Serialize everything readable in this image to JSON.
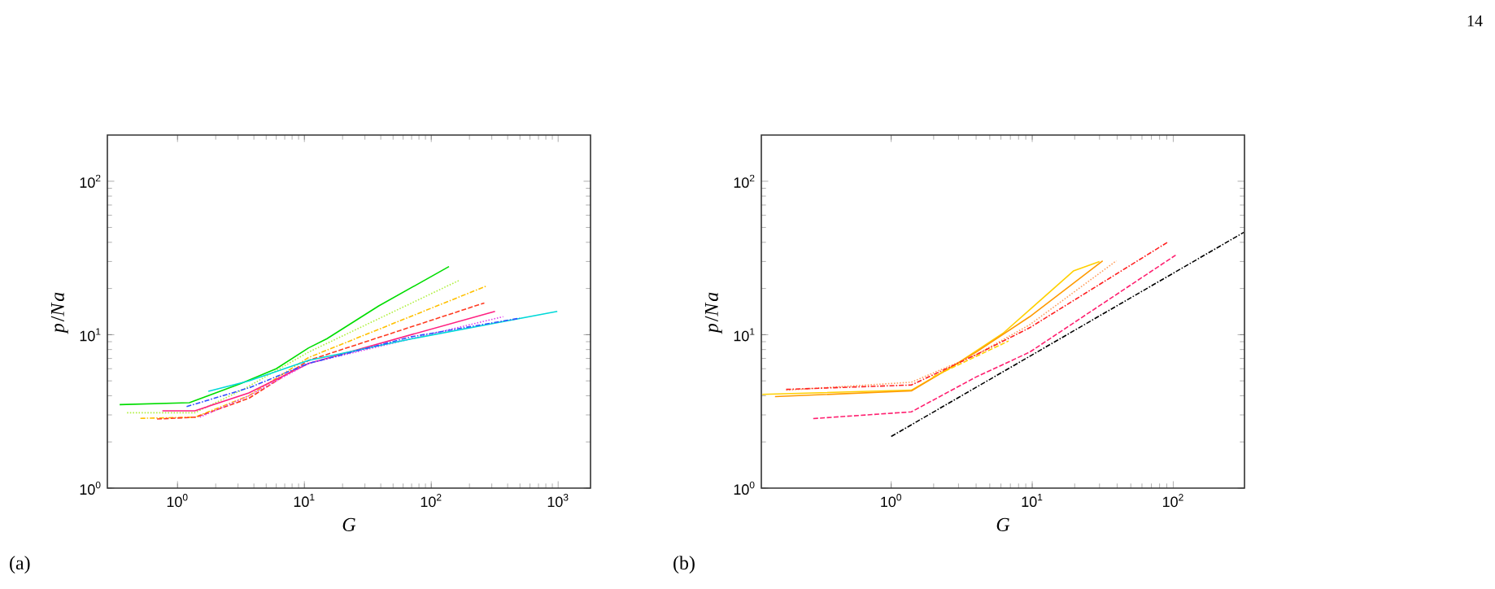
{
  "chart_data": [
    {
      "type": "line",
      "xlabel": "*G*",
      "ylabel": "*p*/*Na*",
      "log": "xy",
      "marker": "none",
      "xlim": [
        0.28,
        1800
      ],
      "ylim": [
        1,
        200
      ],
      "xticks": [
        {
          "value": 1,
          "label": "10$^{0}$"
        },
        {
          "value": 10,
          "label": "10$^{1}$"
        },
        {
          "value": 100,
          "label": "10$^{2}$"
        },
        {
          "value": 1000,
          "label": "10$^{3}$"
        }
      ],
      "yticks": [
        {
          "value": 1,
          "label": "10$^{0}$"
        },
        {
          "value": 10,
          "label": "10$^{1}$"
        },
        {
          "value": 100,
          "label": "10$^{2}$"
        }
      ],
      "annotations": [
        "(a)"
      ],
      "series": [
        {
          "color": "#00dd00",
          "line_style": "solid",
          "x": [
            0.35,
            1.24,
            3.15,
            6.0,
            10.8,
            15,
            38.6,
            138
          ],
          "values": [
            3.5,
            3.6,
            4.8,
            6.0,
            8.2,
            9.4,
            15.4,
            27.8
          ]
        },
        {
          "color": "#b0f040",
          "line_style": "dotted",
          "x": [
            0.4,
            1.37,
            3.3,
            10.8,
            168
          ],
          "values": [
            3.1,
            3.1,
            4.4,
            7.7,
            22.7
          ]
        },
        {
          "color": "#ffc000",
          "line_style": "dashdot",
          "x": [
            0.51,
            1.37,
            3.65,
            10.8,
            274
          ],
          "values": [
            2.85,
            2.9,
            4.0,
            7.1,
            20.8
          ]
        },
        {
          "color": "#ff3a20",
          "line_style": "dashed",
          "x": [
            0.69,
            1.4,
            3.65,
            10.8,
            262
          ],
          "values": [
            2.82,
            2.9,
            3.85,
            6.8,
            16.1
          ]
        },
        {
          "color": "#ff2080",
          "line_style": "solid",
          "x": [
            0.76,
            1.37,
            3.65,
            10.8,
            318
          ],
          "values": [
            3.19,
            3.19,
            4.17,
            6.5,
            14.2
          ]
        },
        {
          "color": "#e040f0",
          "line_style": "dotted",
          "x": [
            1.5,
            3.65,
            10.8,
            369
          ],
          "values": [
            2.9,
            4.0,
            6.5,
            13.1
          ]
        },
        {
          "color": "#00d8d8",
          "line_style": "solid",
          "x": [
            1.75,
            3.65,
            10.8,
            70,
            985
          ],
          "values": [
            4.28,
            5.0,
            6.8,
            9.4,
            14.2
          ]
        },
        {
          "color": "#3050ff",
          "line_style": "dashdot",
          "x": [
            1.18,
            3.65,
            10.8,
            70,
            496
          ],
          "values": [
            3.4,
            4.5,
            6.5,
            9.7,
            12.8
          ]
        }
      ]
    },
    {
      "type": "line",
      "xlabel": "*G*",
      "ylabel": "*p*/*Na*",
      "log": "xy",
      "marker": "none",
      "xlim": [
        0.12,
        320
      ],
      "ylim": [
        1,
        200
      ],
      "xticks": [
        {
          "value": 1,
          "label": "10$^{0}$"
        },
        {
          "value": 10,
          "label": "10$^{1}$"
        },
        {
          "value": 100,
          "label": "10$^{2}$"
        }
      ],
      "yticks": [
        {
          "value": 1,
          "label": "10$^{0}$"
        },
        {
          "value": 10,
          "label": "10$^{1}$"
        },
        {
          "value": 100,
          "label": "10$^{2}$"
        }
      ],
      "annotations": [
        "(b)",
        "14"
      ],
      "series": [
        {
          "color": "#ffd000",
          "line_style": "solid",
          "x": [
            0.122,
            1.39,
            2.8,
            6.2,
            19.6,
            30
          ],
          "values": [
            4.08,
            4.35,
            6.3,
            10.2,
            26,
            30
          ]
        },
        {
          "color": "#ff9a00",
          "line_style": "solid",
          "x": [
            0.15,
            1.39,
            4.0,
            9.6,
            31.6
          ],
          "values": [
            3.95,
            4.3,
            7.7,
            13.1,
            30.3
          ]
        },
        {
          "color": "#ffa060",
          "line_style": "dotted",
          "x": [
            0.18,
            1.39,
            4.0,
            9.6,
            39.5
          ],
          "values": [
            4.35,
            4.9,
            7.4,
            11.6,
            30.3
          ]
        },
        {
          "color": "#ff2020",
          "line_style": "dashdot",
          "x": [
            0.18,
            1.39,
            4.0,
            9.6,
            91
          ],
          "values": [
            4.4,
            4.7,
            7.4,
            11.1,
            40
          ]
        },
        {
          "color": "#ffd000",
          "line_style": "dashed",
          "x": [
            1.97,
            6.8
          ],
          "values": [
            5.3,
            9.1
          ]
        },
        {
          "color": "#ff2070",
          "line_style": "dashed",
          "x": [
            0.28,
            1.39,
            4.0,
            9.6,
            104
          ],
          "values": [
            2.84,
            3.14,
            5.3,
            7.7,
            33
          ]
        },
        {
          "color": "#000000",
          "line_style": "dashdot",
          "x": [
            1,
            316
          ],
          "values": [
            2.17,
            46.4
          ]
        }
      ]
    }
  ]
}
